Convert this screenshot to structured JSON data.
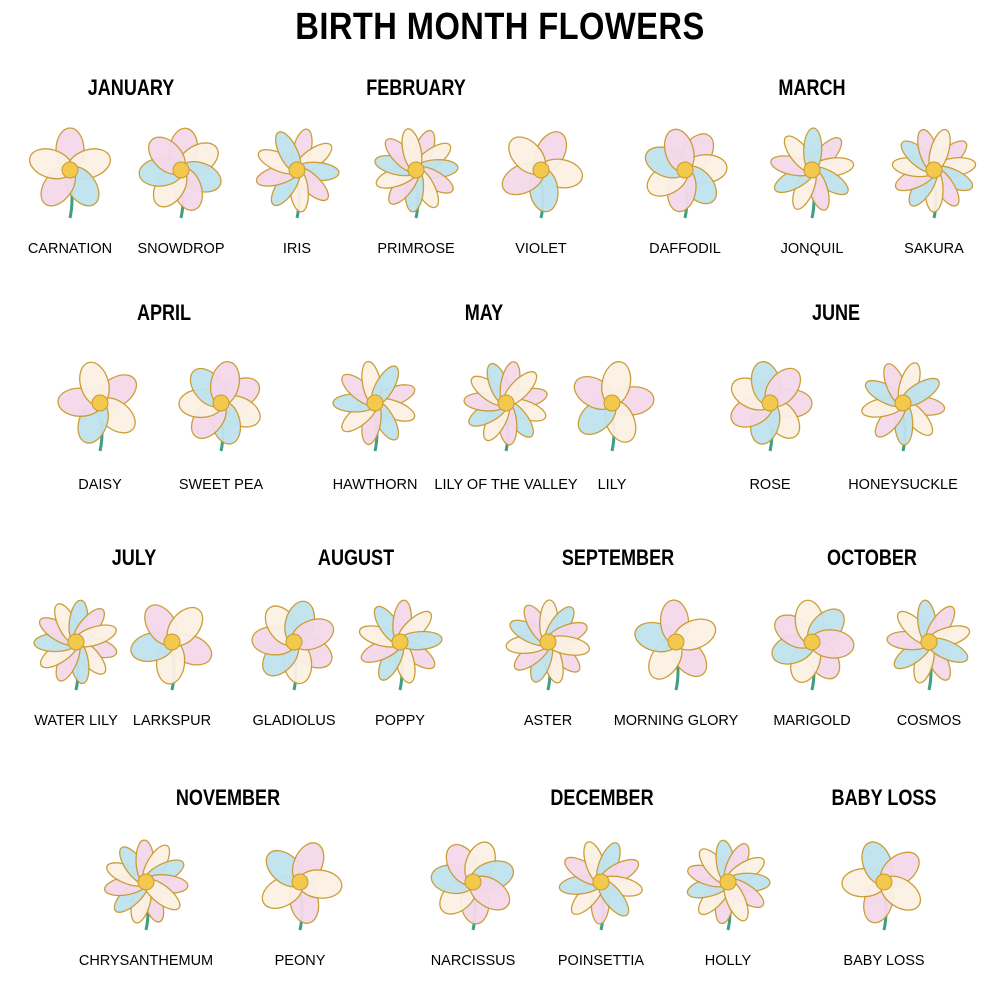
{
  "title": "BIRTH MONTH FLOWERS",
  "colors": {
    "petal": "#fbf1e4",
    "petal_tint": "#f4d9ea",
    "iridescent": "#bfe3ee",
    "gold_outline": "#c99a2e",
    "center": "#f2c94c",
    "stem": "#3f9e85"
  },
  "months": [
    {
      "name": "JANUARY",
      "flowers": [
        "CARNATION",
        "SNOWDROP"
      ]
    },
    {
      "name": "FEBRUARY",
      "flowers": [
        "IRIS",
        "PRIMROSE",
        "VIOLET"
      ]
    },
    {
      "name": "MARCH",
      "flowers": [
        "DAFFODIL",
        "JONQUIL",
        "SAKURA"
      ]
    },
    {
      "name": "APRIL",
      "flowers": [
        "DAISY",
        "SWEET PEA"
      ]
    },
    {
      "name": "MAY",
      "flowers": [
        "HAWTHORN",
        "LILY OF THE VALLEY",
        "LILY"
      ]
    },
    {
      "name": "JUNE",
      "flowers": [
        "ROSE",
        "HONEYSUCKLE"
      ]
    },
    {
      "name": "JULY",
      "flowers": [
        "WATER LILY",
        "LARKSPUR"
      ]
    },
    {
      "name": "AUGUST",
      "flowers": [
        "GLADIOLUS",
        "POPPY"
      ]
    },
    {
      "name": "SEPTEMBER",
      "flowers": [
        "ASTER",
        "MORNING GLORY"
      ]
    },
    {
      "name": "OCTOBER",
      "flowers": [
        "MARIGOLD",
        "COSMOS"
      ]
    },
    {
      "name": "NOVEMBER",
      "flowers": [
        "CHRYSANTHEMUM",
        "PEONY"
      ]
    },
    {
      "name": "DECEMBER",
      "flowers": [
        "NARCISSUS",
        "POINSETTIA",
        "HOLLY"
      ]
    },
    {
      "name": "BABY LOSS",
      "flowers": [
        "BABY LOSS"
      ]
    }
  ]
}
